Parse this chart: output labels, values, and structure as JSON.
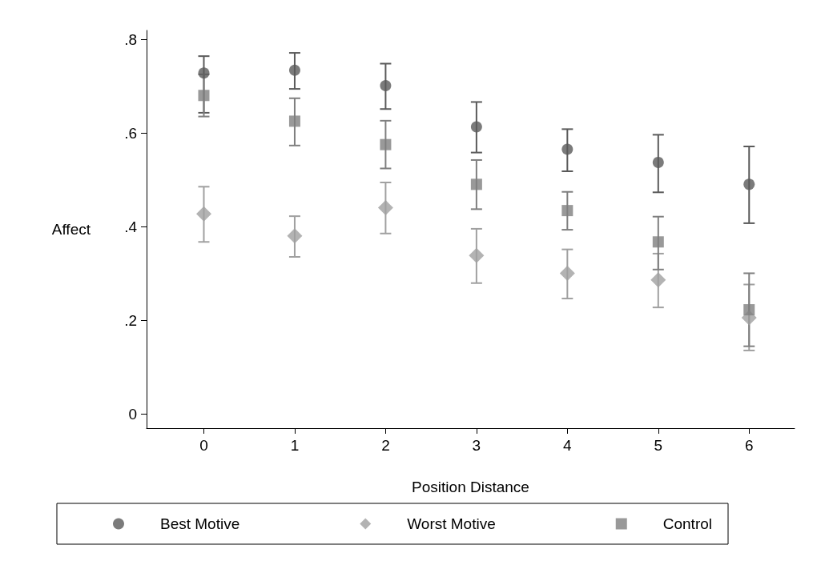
{
  "chart_data": {
    "type": "scatter",
    "xlabel": "Position Distance",
    "ylabel": "Affect",
    "x": [
      0,
      1,
      2,
      3,
      4,
      5,
      6
    ],
    "xlim": [
      -0.63,
      6.5
    ],
    "xticks": [
      0,
      1,
      2,
      3,
      4,
      5,
      6
    ],
    "ylim": [
      -0.03,
      0.82
    ],
    "yticks": [
      0,
      {
        "value": 0.2,
        "label": ".2"
      },
      {
        "value": 0.4,
        "label": ".4"
      },
      {
        "value": 0.6,
        "label": ".6"
      },
      {
        "value": 0.8,
        "label": ".8"
      }
    ],
    "grid": false,
    "legend": "bottom",
    "series": [
      {
        "name": "Best Motive",
        "color": "#5a5a5a",
        "marker": "circle",
        "values": [
          0.729,
          0.735,
          0.702,
          0.614,
          0.566,
          0.538,
          0.491
        ],
        "errors": [
          [
            0.644,
            0.765
          ],
          [
            0.695,
            0.772
          ],
          [
            0.652,
            0.749
          ],
          [
            0.559,
            0.667
          ],
          [
            0.519,
            0.609
          ],
          [
            0.474,
            0.597
          ],
          [
            0.408,
            0.572
          ]
        ]
      },
      {
        "name": "Worst Motive",
        "color": "#a0a0a0",
        "marker": "diamond",
        "values": [
          0.428,
          0.381,
          0.441,
          0.339,
          0.301,
          0.287,
          0.206
        ],
        "errors": [
          [
            0.368,
            0.486
          ],
          [
            0.336,
            0.423
          ],
          [
            0.386,
            0.495
          ],
          [
            0.28,
            0.396
          ],
          [
            0.247,
            0.352
          ],
          [
            0.228,
            0.343
          ],
          [
            0.136,
            0.277
          ]
        ]
      },
      {
        "name": "Control",
        "color": "#7f7f7f",
        "marker": "square",
        "values": [
          0.681,
          0.626,
          0.576,
          0.491,
          0.435,
          0.368,
          0.223
        ],
        "errors": [
          [
            0.636,
            0.726
          ],
          [
            0.574,
            0.675
          ],
          [
            0.525,
            0.627
          ],
          [
            0.438,
            0.543
          ],
          [
            0.394,
            0.475
          ],
          [
            0.309,
            0.422
          ],
          [
            0.145,
            0.301
          ]
        ]
      }
    ]
  }
}
